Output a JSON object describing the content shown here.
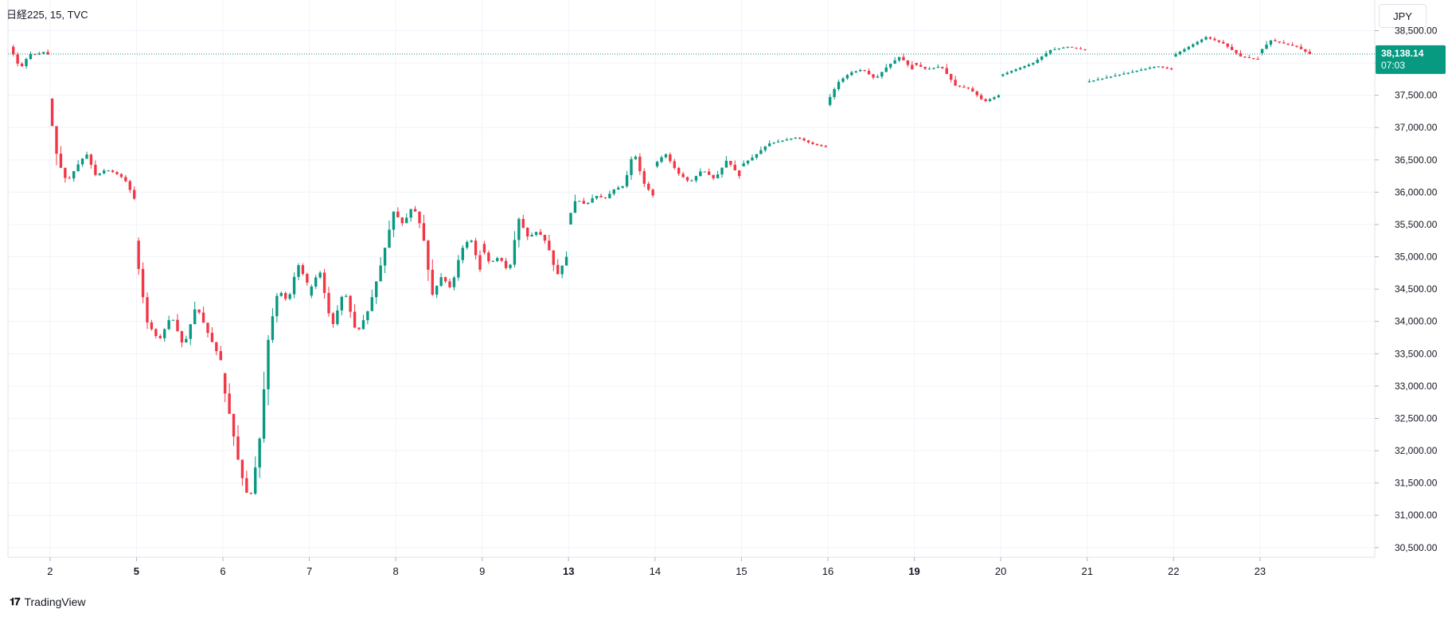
{
  "header": {
    "symbol_label": "日経225, 15, TVC"
  },
  "currency": "JPY",
  "footer": {
    "brand": "TradingView",
    "logo_icon": "tradingview-logo-icon"
  },
  "price_badge": {
    "price": "38,138.14",
    "countdown": "07:03"
  },
  "colors": {
    "up": "#089981",
    "down": "#f23645",
    "last_line": "#089981",
    "grid": "#f0f3fa"
  },
  "chart_data": {
    "type": "candlestick",
    "y_tick_labels": [
      "38,500.00",
      "38,000.00",
      "37,500.00",
      "37,000.00",
      "36,500.00",
      "36,000.00",
      "35,500.00",
      "35,000.00",
      "34,500.00",
      "34,000.00",
      "33,500.00",
      "33,000.00",
      "32,500.00",
      "32,000.00",
      "31,500.00",
      "31,000.00",
      "30,500.00"
    ],
    "ylim": [
      30350,
      38900
    ],
    "last_price": 38138.14,
    "x_ticks": [
      {
        "label": "2",
        "bold": false
      },
      {
        "label": "5",
        "bold": true
      },
      {
        "label": "6",
        "bold": false
      },
      {
        "label": "7",
        "bold": false
      },
      {
        "label": "8",
        "bold": false
      },
      {
        "label": "9",
        "bold": false
      },
      {
        "label": "13",
        "bold": true
      },
      {
        "label": "14",
        "bold": false
      },
      {
        "label": "15",
        "bold": false
      },
      {
        "label": "16",
        "bold": false
      },
      {
        "label": "19",
        "bold": true
      },
      {
        "label": "20",
        "bold": false
      },
      {
        "label": "21",
        "bold": false
      },
      {
        "label": "22",
        "bold": false
      },
      {
        "label": "23",
        "bold": false
      }
    ],
    "sessions": [
      {
        "label": "(prior)",
        "bars": 9,
        "o": 38250,
        "c": 38130,
        "h": 38330,
        "l": 37780,
        "path": [
          38250,
          38100,
          37900,
          38050,
          38150,
          38120,
          38180,
          38130
        ]
      },
      {
        "label": "2",
        "bars": 20,
        "o": 37450,
        "c": 35900,
        "h": 37450,
        "l": 35850,
        "path": [
          37450,
          36500,
          36150,
          36400,
          36600,
          36250,
          36350,
          36300,
          36200,
          35900
        ]
      },
      {
        "label": "5",
        "bars": 20,
        "o": 35250,
        "c": 33400,
        "h": 35300,
        "l": 33400,
        "path": [
          35250,
          34000,
          33700,
          34100,
          33600,
          34250,
          33800,
          33400
        ]
      },
      {
        "label": "6",
        "bars": 20,
        "o": 33200,
        "c": 34600,
        "h": 34900,
        "l": 31150,
        "path": [
          33200,
          32500,
          31700,
          31200,
          32100,
          33800,
          34500,
          34300,
          34900,
          34600
        ]
      },
      {
        "label": "7",
        "bars": 20,
        "o": 34400,
        "c": 35700,
        "h": 35850,
        "l": 33450,
        "path": [
          34400,
          34800,
          33900,
          34500,
          33800,
          34200,
          34900,
          35700
        ]
      },
      {
        "label": "8",
        "bars": 20,
        "o": 35700,
        "c": 34800,
        "h": 35800,
        "l": 34200,
        "path": [
          35700,
          35500,
          35800,
          35400,
          34400,
          34700,
          34500,
          35100,
          35300,
          34800
        ]
      },
      {
        "label": "9",
        "bars": 20,
        "o": 35200,
        "c": 35000,
        "h": 35650,
        "l": 34450,
        "path": [
          35200,
          34900,
          35000,
          34750,
          35600,
          35300,
          35400,
          35200,
          34700,
          35000
        ]
      },
      {
        "label": "13",
        "bars": 20,
        "o": 35500,
        "c": 35950,
        "h": 36650,
        "l": 35500,
        "path": [
          35500,
          35900,
          35800,
          35950,
          35900,
          36050,
          36100,
          36650,
          36150,
          35950
        ]
      },
      {
        "label": "14",
        "bars": 20,
        "o": 36400,
        "c": 36250,
        "h": 36700,
        "l": 36050,
        "path": [
          36400,
          36600,
          36300,
          36150,
          36350,
          36200,
          36500,
          36250
        ]
      },
      {
        "label": "15",
        "bars": 20,
        "o": 36400,
        "c": 36700,
        "h": 36850,
        "l": 36350,
        "path": [
          36400,
          36550,
          36750,
          36800,
          36850,
          36750,
          36700
        ]
      },
      {
        "label": "16",
        "bars": 20,
        "o": 37350,
        "c": 37900,
        "h": 38150,
        "l": 37300,
        "path": [
          37350,
          37700,
          37850,
          37900,
          37750,
          37950,
          38100,
          37900
        ]
      },
      {
        "label": "19",
        "bars": 20,
        "o": 38000,
        "c": 37500,
        "h": 38100,
        "l": 37350,
        "path": [
          38000,
          37900,
          37950,
          37650,
          37600,
          37400,
          37500
        ]
      },
      {
        "label": "20",
        "bars": 20,
        "o": 37800,
        "c": 38200,
        "h": 38250,
        "l": 37750,
        "path": [
          37800,
          37900,
          38000,
          38200,
          38250,
          38200
        ]
      },
      {
        "label": "21",
        "bars": 20,
        "o": 37700,
        "c": 37900,
        "h": 37950,
        "l": 37600,
        "path": [
          37700,
          37750,
          37800,
          37850,
          37900,
          37950,
          37900
        ]
      },
      {
        "label": "22",
        "bars": 20,
        "o": 38100,
        "c": 38050,
        "h": 38420,
        "l": 37950,
        "path": [
          38100,
          38250,
          38400,
          38300,
          38100,
          38050
        ]
      },
      {
        "label": "23",
        "bars": 12,
        "o": 38150,
        "c": 38138,
        "h": 38380,
        "l": 38080,
        "path": [
          38150,
          38350,
          38300,
          38250,
          38138
        ]
      }
    ]
  }
}
